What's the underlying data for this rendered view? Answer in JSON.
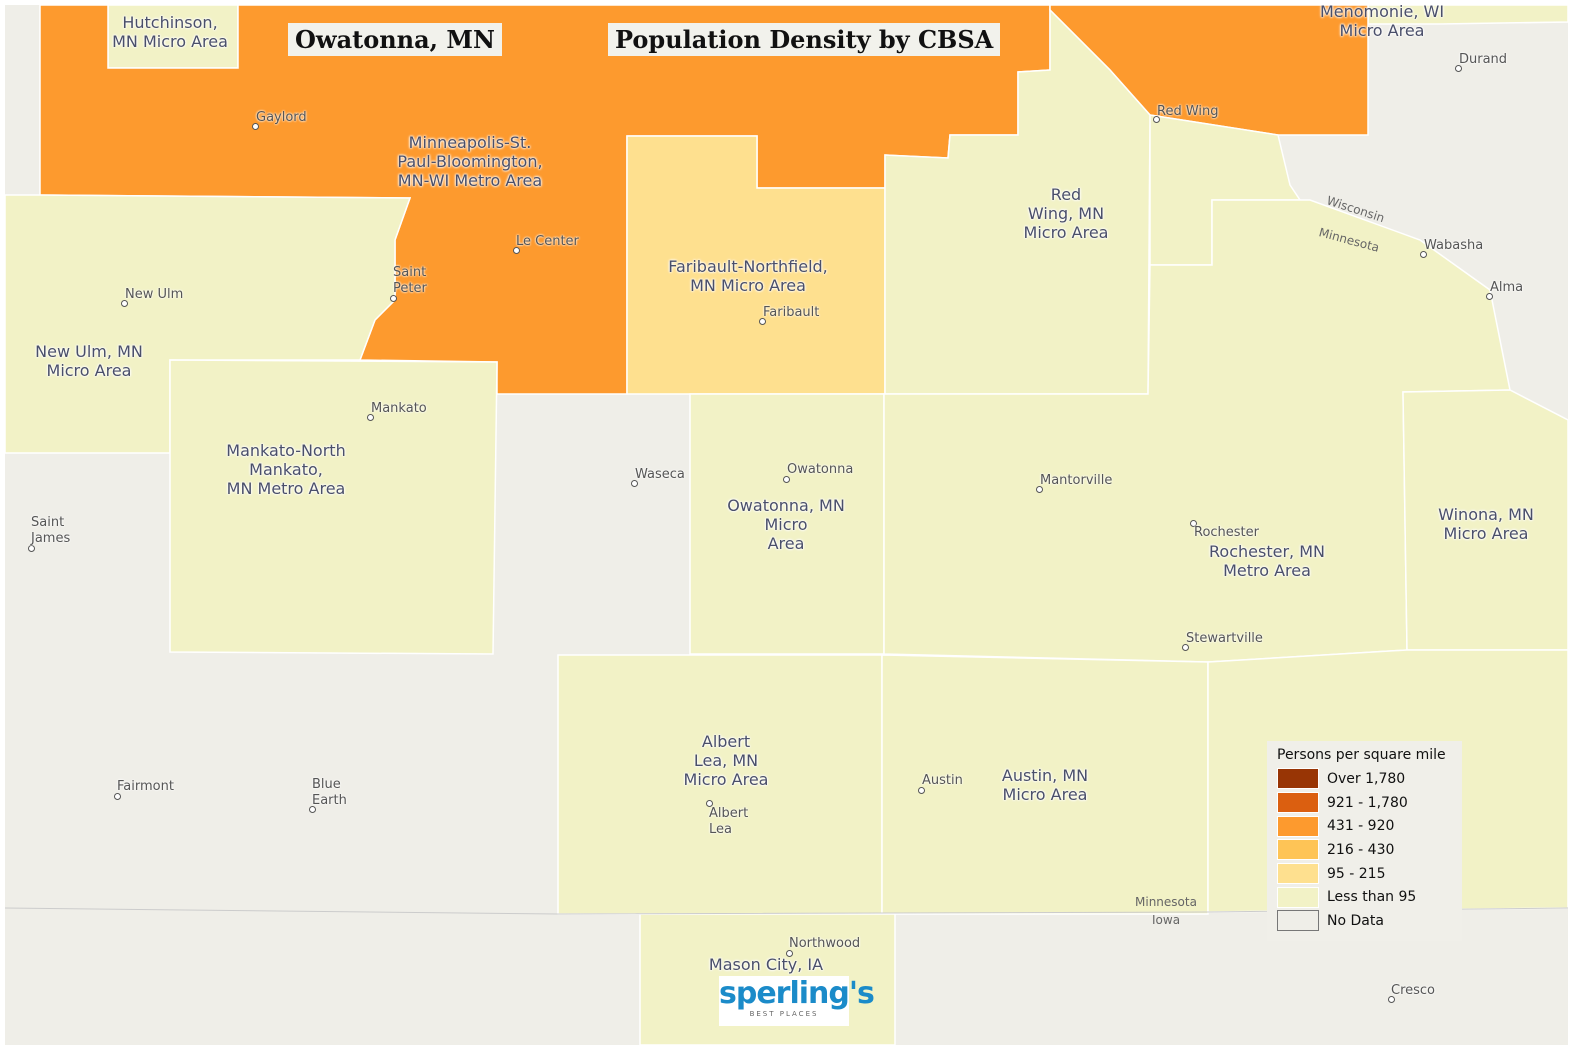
{
  "titles": {
    "place": "Owatonna, MN",
    "map": "Population Density by CBSA"
  },
  "colors": {
    "over_1780": "#983505",
    "c921_1780": "#DB5F10",
    "c431_920": "#FD9A2E",
    "c216_430": "#FEC456",
    "c95_215": "#FEE08F",
    "lt95": "#F2F2C6",
    "nodata": "#EFEEE8"
  },
  "areas": [
    {
      "name": "Minneapolis-St.\nPaul-Bloomington,\nMN-WI Metro Area",
      "class": "431 - 920"
    },
    {
      "name": "Hutchinson,\nMN Micro Area",
      "class": "Less than 95"
    },
    {
      "name": "Menomonie, WI\nMicro Area",
      "class": "431 - 920"
    },
    {
      "name": "Faribault-Northfield,\nMN Micro Area",
      "class": "95 - 215"
    },
    {
      "name": "Red\nWing, MN\nMicro Area",
      "class": "Less than 95"
    },
    {
      "name": "New Ulm, MN\nMicro Area",
      "class": "Less than 95"
    },
    {
      "name": "Mankato-North\nMankato,\nMN Metro Area",
      "class": "Less than 95"
    },
    {
      "name": "Owatonna, MN\nMicro\nArea",
      "class": "Less than 95"
    },
    {
      "name": "Rochester, MN\nMetro Area",
      "class": "Less than 95"
    },
    {
      "name": "Winona, MN\nMicro Area",
      "class": "Less than 95"
    },
    {
      "name": "Albert\nLea, MN\nMicro Area",
      "class": "Less than 95"
    },
    {
      "name": "Austin, MN\nMicro Area",
      "class": "Less than 95"
    },
    {
      "name": "Mason City, IA",
      "class": "Less than 95"
    }
  ],
  "cities": [
    "Gaylord",
    "Le Center",
    "Saint\nPeter",
    "New Ulm",
    "Mankato",
    "Faribault",
    "Red Wing",
    "Durand",
    "Wabasha",
    "Alma",
    "Waseca",
    "Owatonna",
    "Mantorville",
    "Rochester",
    "Stewartville",
    "Saint\nJames",
    "Fairmont",
    "Blue\nEarth",
    "Albert\nLea",
    "Austin",
    "Northwood",
    "Cresco"
  ],
  "state_labels": [
    "Wisconsin",
    "Minnesota",
    "Minnesota",
    "Iowa"
  ],
  "legend": {
    "title": "Persons per square mile",
    "items": [
      "Over 1,780",
      "921 - 1,780",
      "431 - 920",
      "216 - 430",
      "95 - 215",
      "Less than 95",
      "No Data"
    ]
  },
  "logo": {
    "brand": "sperling's",
    "tagline": "BEST PLACES"
  }
}
